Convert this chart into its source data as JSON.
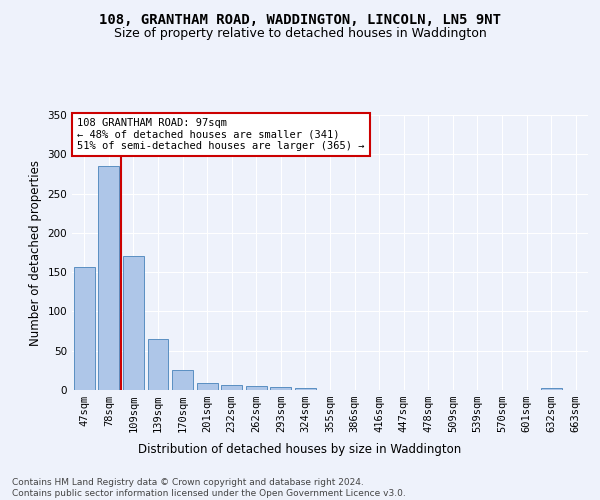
{
  "title1": "108, GRANTHAM ROAD, WADDINGTON, LINCOLN, LN5 9NT",
  "title2": "Size of property relative to detached houses in Waddington",
  "xlabel": "Distribution of detached houses by size in Waddington",
  "ylabel": "Number of detached properties",
  "bin_labels": [
    "47sqm",
    "78sqm",
    "109sqm",
    "139sqm",
    "170sqm",
    "201sqm",
    "232sqm",
    "262sqm",
    "293sqm",
    "324sqm",
    "355sqm",
    "386sqm",
    "416sqm",
    "447sqm",
    "478sqm",
    "509sqm",
    "539sqm",
    "570sqm",
    "601sqm",
    "632sqm",
    "663sqm"
  ],
  "bar_heights": [
    156,
    285,
    170,
    65,
    25,
    9,
    7,
    5,
    4,
    3,
    0,
    0,
    0,
    0,
    0,
    0,
    0,
    0,
    0,
    3,
    0
  ],
  "bar_color": "#aec6e8",
  "bar_edge_color": "#5a8fc2",
  "vline_x": 1.5,
  "vline_color": "#cc0000",
  "annotation_text": "108 GRANTHAM ROAD: 97sqm\n← 48% of detached houses are smaller (341)\n51% of semi-detached houses are larger (365) →",
  "annotation_box_color": "#ffffff",
  "annotation_box_edge": "#cc0000",
  "ylim": [
    0,
    350
  ],
  "yticks": [
    0,
    50,
    100,
    150,
    200,
    250,
    300,
    350
  ],
  "footnote": "Contains HM Land Registry data © Crown copyright and database right 2024.\nContains public sector information licensed under the Open Government Licence v3.0.",
  "bg_color": "#eef2fb",
  "grid_color": "#ffffff",
  "title1_fontsize": 10,
  "title2_fontsize": 9,
  "axis_label_fontsize": 8.5,
  "tick_fontsize": 7.5,
  "annotation_fontsize": 7.5,
  "footnote_fontsize": 6.5
}
